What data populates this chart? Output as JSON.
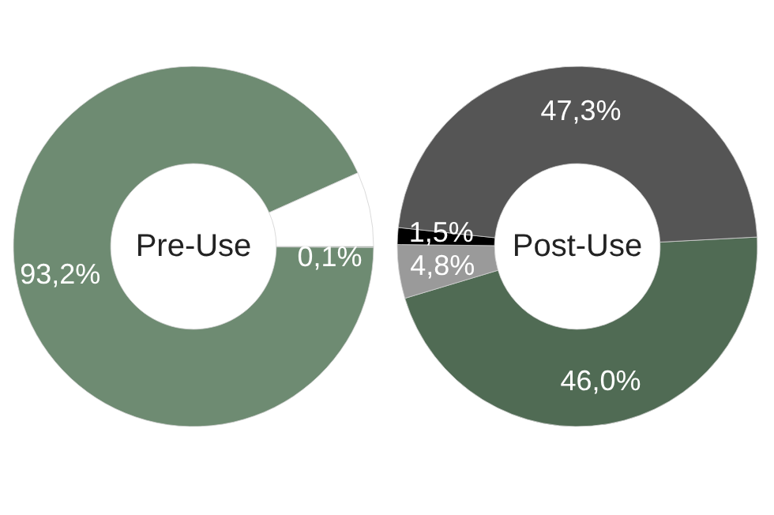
{
  "chart_data": [
    {
      "type": "donut",
      "title": "Pre-Use",
      "categories": [
        null,
        null,
        null
      ],
      "values": [
        0.1,
        93.2,
        6.7
      ],
      "colors": [
        "#6e8b72",
        "#6e8b72",
        "#ffffff"
      ],
      "value_labels": [
        "0,1%",
        "93,2%",
        null
      ]
    },
    {
      "type": "donut",
      "title": "Post-Use",
      "categories": [
        null,
        null,
        null,
        null
      ],
      "values": [
        46.0,
        4.8,
        1.5,
        47.3
      ],
      "colors": [
        "#506b54",
        "#9a9a9a",
        "#000000",
        "#555555"
      ],
      "value_labels": [
        "46,0%",
        "4,8%",
        "1,5%",
        "47,3%"
      ]
    }
  ]
}
